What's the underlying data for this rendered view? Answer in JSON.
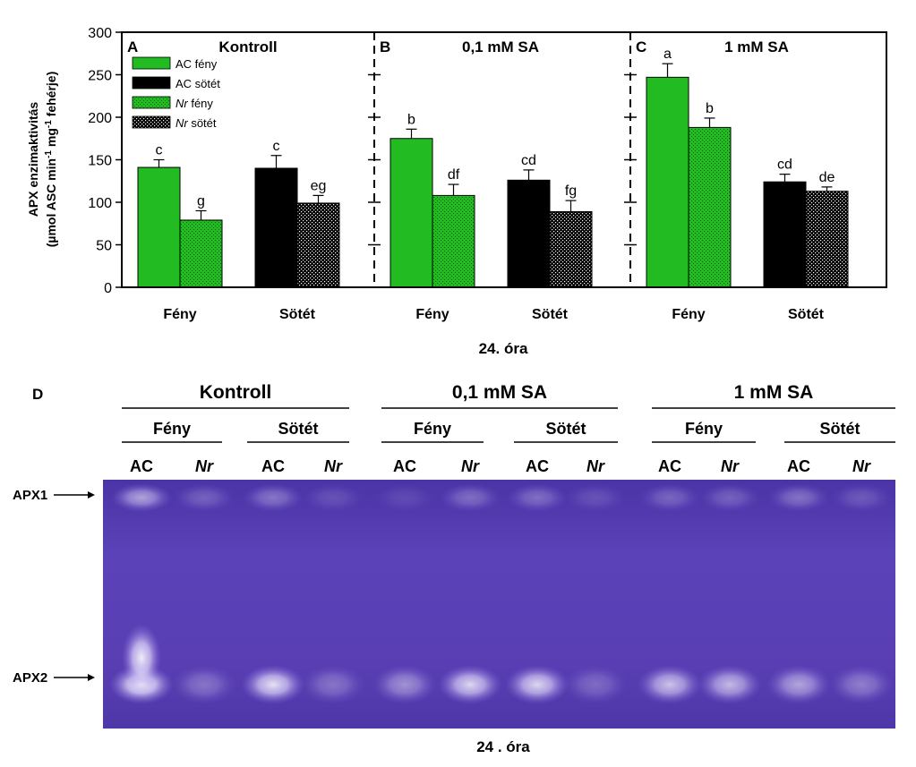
{
  "chart_data": {
    "type": "bar",
    "ylabel_line1": "APX enzimaktivitás",
    "ylabel_line2": "(µmol ASC min",
    "ylabel_sup1": "-1",
    "ylabel_mid": " mg",
    "ylabel_sup2": "-1",
    "ylabel_end": " fehérje)",
    "ylim": [
      0,
      300
    ],
    "yticks": [
      "0",
      "50",
      "100",
      "150",
      "200",
      "250",
      "300"
    ],
    "xlabel": "24. óra",
    "categories": [
      "Fény",
      "Sötét"
    ],
    "legend": [
      {
        "genotype": "AC",
        "condition": " fény",
        "pattern": "ac-light"
      },
      {
        "genotype": "AC",
        "condition": " sötét",
        "pattern": "ac-dark"
      },
      {
        "genotype": "Nr",
        "condition": " fény",
        "pattern": "nr-light"
      },
      {
        "genotype": "Nr",
        "condition": " sötét",
        "pattern": "nr-dark"
      }
    ],
    "panels": [
      {
        "letter": "A",
        "title": "Kontroll",
        "bars": [
          {
            "value": 141,
            "error": 9,
            "label": "c",
            "pattern": "ac-light"
          },
          {
            "value": 79,
            "error": 11,
            "label": "g",
            "pattern": "nr-light"
          },
          {
            "value": 140,
            "error": 15,
            "label": "c",
            "pattern": "ac-dark"
          },
          {
            "value": 99,
            "error": 9,
            "label": "eg",
            "pattern": "nr-dark"
          }
        ]
      },
      {
        "letter": "B",
        "title": "0,1 mM SA",
        "bars": [
          {
            "value": 175,
            "error": 11,
            "label": "b",
            "pattern": "ac-light"
          },
          {
            "value": 108,
            "error": 13,
            "label": "df",
            "pattern": "nr-light"
          },
          {
            "value": 126,
            "error": 12,
            "label": "cd",
            "pattern": "ac-dark"
          },
          {
            "value": 89,
            "error": 13,
            "label": "fg",
            "pattern": "nr-dark"
          }
        ]
      },
      {
        "letter": "C",
        "title": "1 mM SA",
        "bars": [
          {
            "value": 247,
            "error": 16,
            "label": "a",
            "pattern": "ac-light"
          },
          {
            "value": 188,
            "error": 11,
            "label": "b",
            "pattern": "nr-light"
          },
          {
            "value": 124,
            "error": 9,
            "label": "cd",
            "pattern": "ac-dark"
          },
          {
            "value": 113,
            "error": 5,
            "label": "de",
            "pattern": "nr-dark"
          }
        ]
      }
    ],
    "colors": {
      "green": "#22bb22",
      "black": "#000000",
      "gel": "#5a3fb4",
      "gel_dark": "#3e2a8c"
    }
  },
  "gel": {
    "panel_letter": "D",
    "groups": [
      {
        "title": "Kontroll",
        "subgroups": [
          "Fény",
          "Sötét"
        ]
      },
      {
        "title": "0,1 mM SA",
        "subgroups": [
          "Fény",
          "Sötét"
        ]
      },
      {
        "title": "1 mM SA",
        "subgroups": [
          "Fény",
          "Sötét"
        ]
      }
    ],
    "lanes": [
      "AC",
      "Nr",
      "AC",
      "Nr",
      "AC",
      "Nr",
      "AC",
      "Nr",
      "AC",
      "Nr",
      "AC",
      "Nr"
    ],
    "apx1_intensity": [
      0.55,
      0.22,
      0.32,
      0.14,
      0.1,
      0.28,
      0.28,
      0.14,
      0.24,
      0.22,
      0.3,
      0.18
    ],
    "apx2_intensity": [
      0.95,
      0.3,
      0.85,
      0.3,
      0.45,
      0.8,
      0.8,
      0.25,
      0.7,
      0.65,
      0.55,
      0.35
    ],
    "band_labels": [
      "APX1",
      "APX2"
    ],
    "xlabel": "24 . óra"
  }
}
